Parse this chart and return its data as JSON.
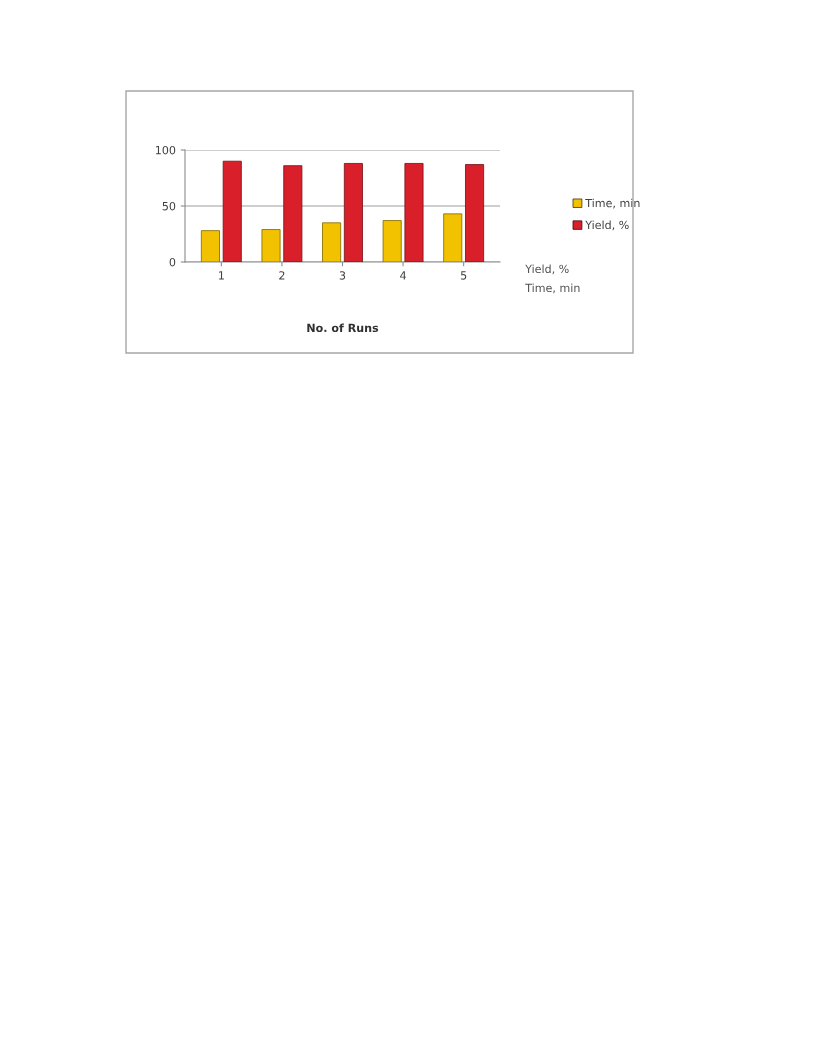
{
  "chart_data": {
    "type": "bar",
    "xlabel": "No. of Runs",
    "categories": [
      "1",
      "2",
      "3",
      "4",
      "5"
    ],
    "series": [
      {
        "name": "Time, min",
        "color": "#f2c200",
        "values": [
          28,
          29,
          35,
          37,
          43
        ]
      },
      {
        "name": "Yield, %",
        "color": "#d9202a",
        "values": [
          90,
          86,
          88,
          88,
          87
        ]
      }
    ],
    "ylim": [
      0,
      100
    ],
    "yticks": [
      0,
      50,
      100
    ],
    "grid": "y",
    "legend": "right"
  }
}
